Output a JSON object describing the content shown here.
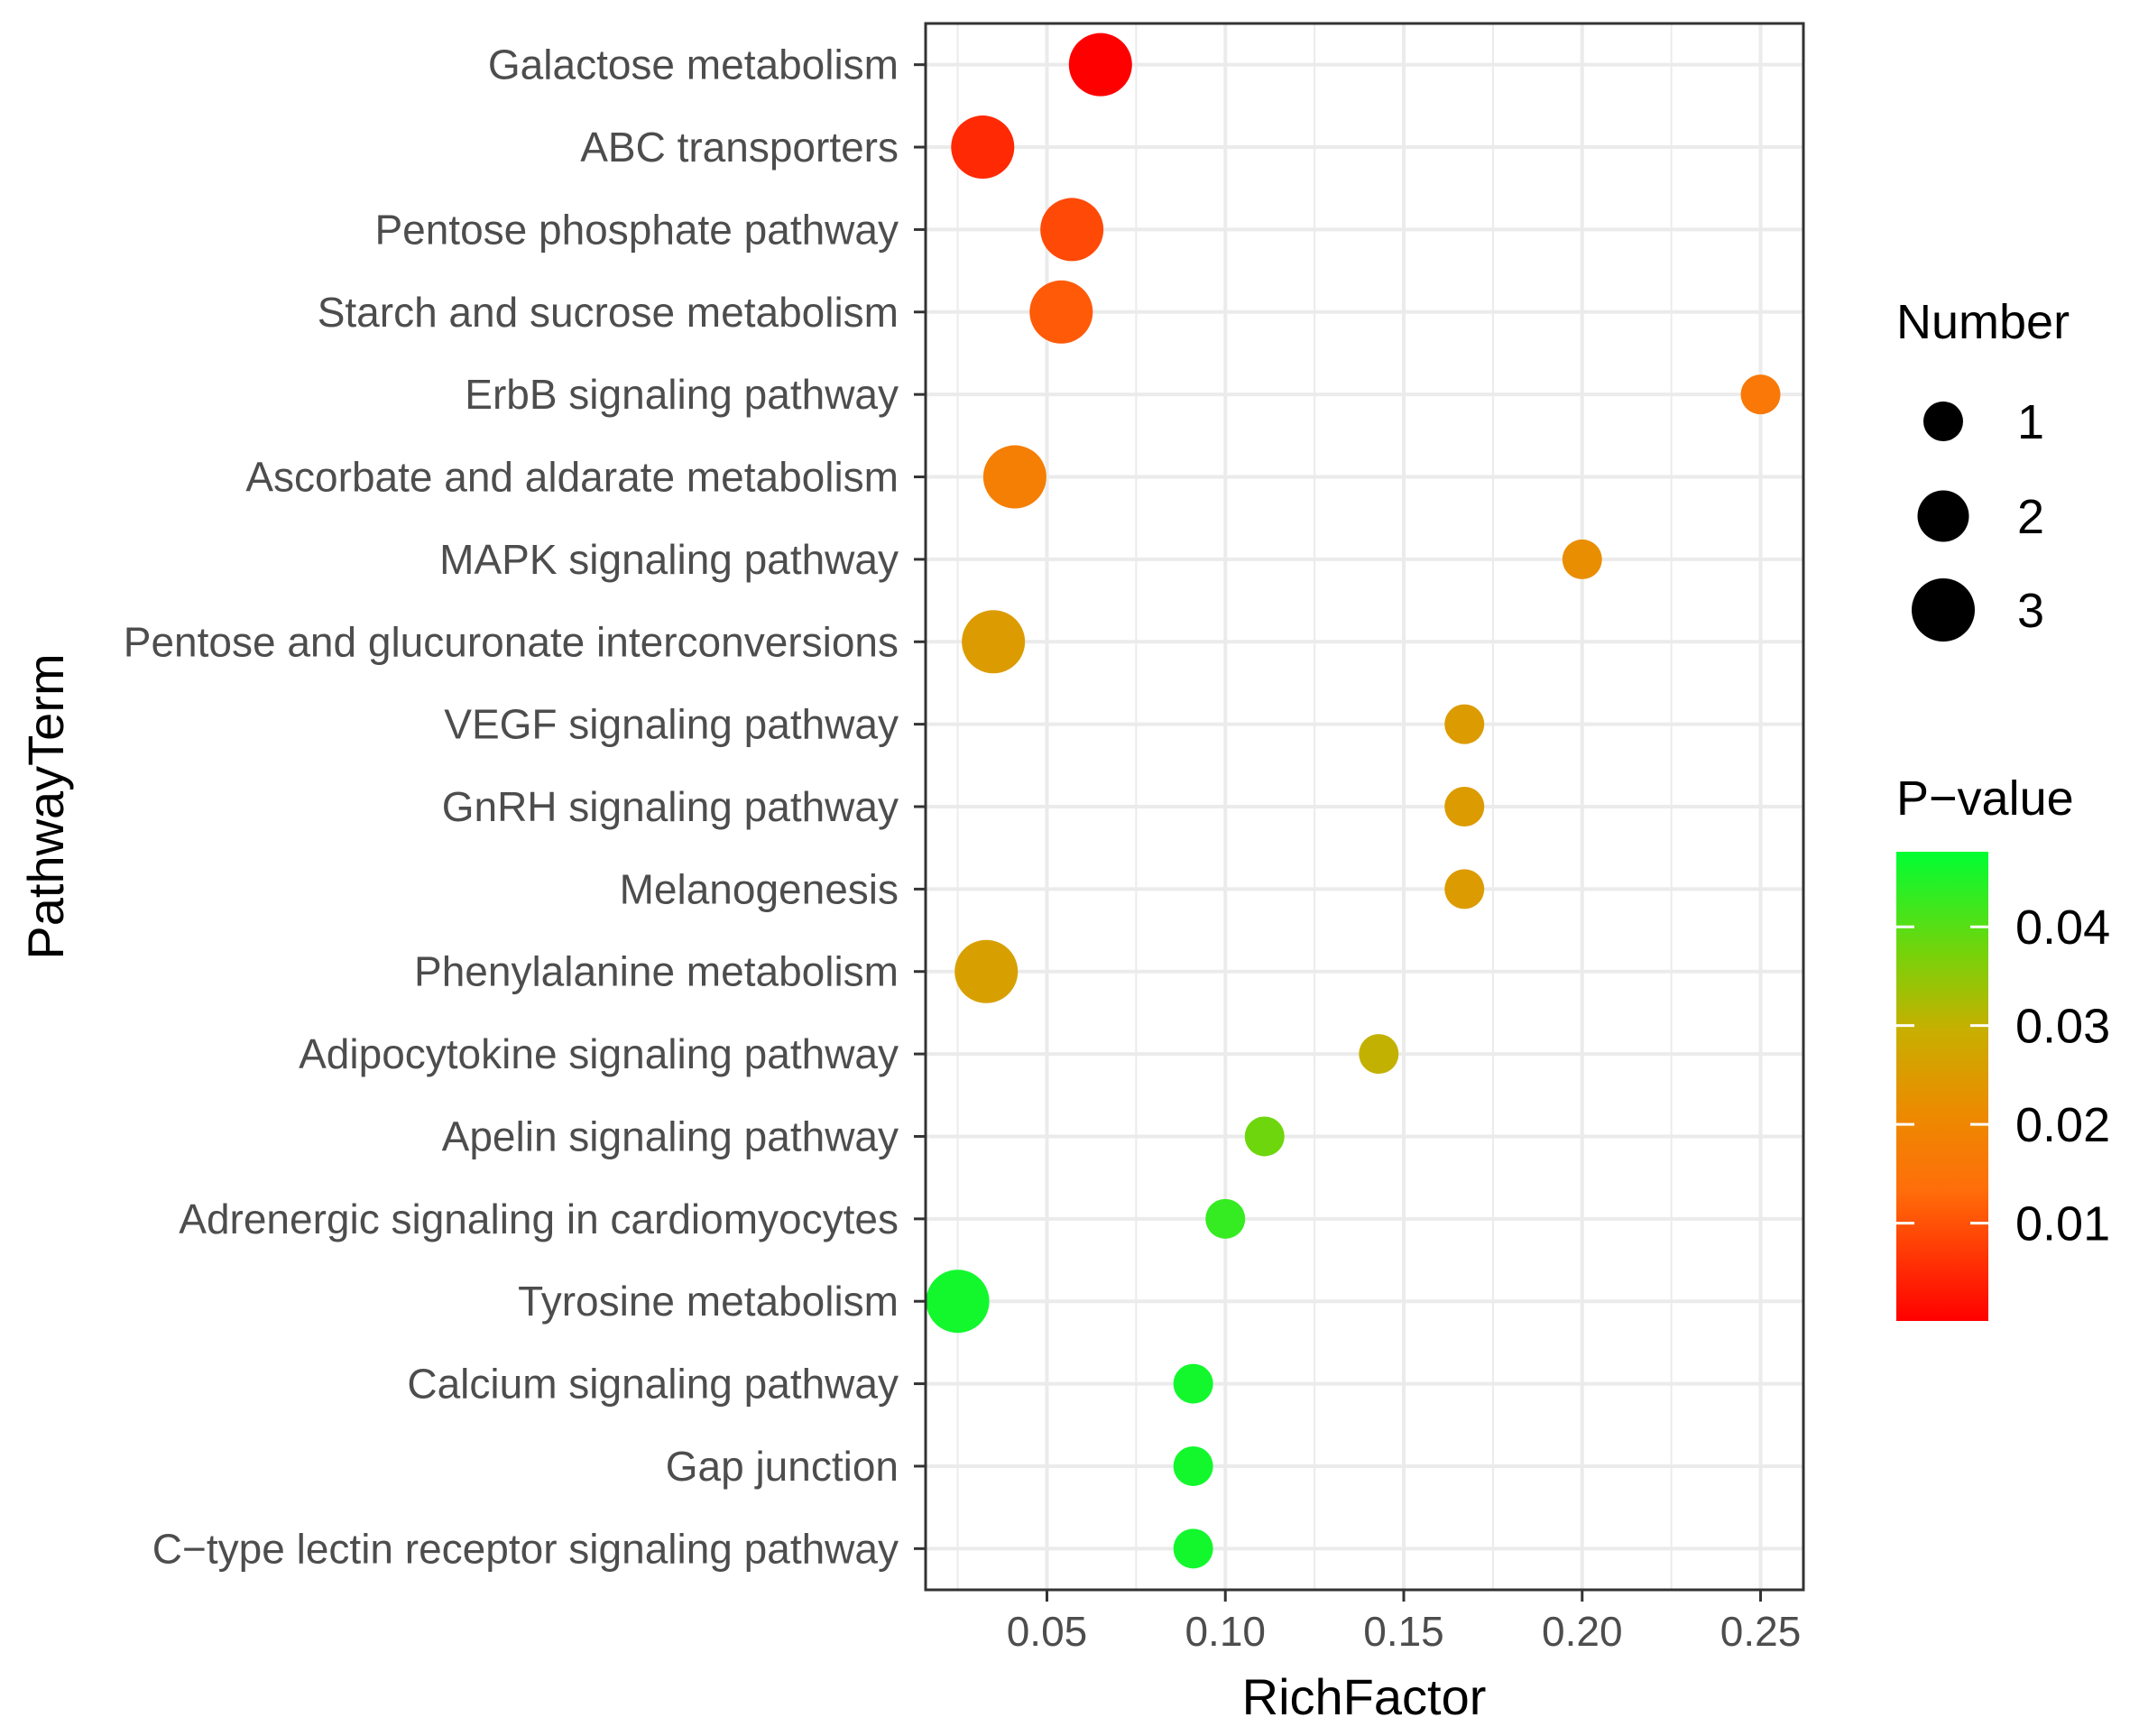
{
  "chart_data": {
    "type": "scatter",
    "xlabel": "RichFactor",
    "ylabel": "PathwayTerm",
    "xlim": [
      0.016,
      0.262
    ],
    "xticks": [
      {
        "value": 0.05,
        "label": "0.05"
      },
      {
        "value": 0.1,
        "label": "0.10"
      },
      {
        "value": 0.15,
        "label": "0.15"
      },
      {
        "value": 0.2,
        "label": "0.20"
      },
      {
        "value": 0.25,
        "label": "0.25"
      }
    ],
    "grid": true,
    "legend_position": "right",
    "points": [
      {
        "term": "Galactose metabolism",
        "rich_factor": 0.065,
        "number": 3,
        "p_value": 0.0001
      },
      {
        "term": "ABC transporters",
        "rich_factor": 0.032,
        "number": 3,
        "p_value": 0.005
      },
      {
        "term": "Pentose phosphate pathway",
        "rich_factor": 0.057,
        "number": 3,
        "p_value": 0.009
      },
      {
        "term": "Starch and sucrose metabolism",
        "rich_factor": 0.054,
        "number": 3,
        "p_value": 0.011
      },
      {
        "term": "ErbB signaling pathway",
        "rich_factor": 0.25,
        "number": 1,
        "p_value": 0.016
      },
      {
        "term": "Ascorbate and aldarate metabolism",
        "rich_factor": 0.041,
        "number": 3,
        "p_value": 0.018
      },
      {
        "term": "MAPK signaling pathway",
        "rich_factor": 0.2,
        "number": 1,
        "p_value": 0.022
      },
      {
        "term": "Pentose and glucuronate interconversions",
        "rich_factor": 0.035,
        "number": 3,
        "p_value": 0.025
      },
      {
        "term": "VEGF signaling pathway",
        "rich_factor": 0.167,
        "number": 1,
        "p_value": 0.025
      },
      {
        "term": "GnRH signaling pathway",
        "rich_factor": 0.167,
        "number": 1,
        "p_value": 0.025
      },
      {
        "term": "Melanogenesis",
        "rich_factor": 0.167,
        "number": 1,
        "p_value": 0.025
      },
      {
        "term": "Phenylalanine metabolism",
        "rich_factor": 0.033,
        "number": 3,
        "p_value": 0.026
      },
      {
        "term": "Adipocytokine signaling pathway",
        "rich_factor": 0.143,
        "number": 1,
        "p_value": 0.03
      },
      {
        "term": "Apelin signaling pathway",
        "rich_factor": 0.111,
        "number": 1,
        "p_value": 0.038
      },
      {
        "term": "Adrenergic signaling in cardiomyocytes",
        "rich_factor": 0.1,
        "number": 1,
        "p_value": 0.043
      },
      {
        "term": "Tyrosine metabolism",
        "rich_factor": 0.025,
        "number": 3,
        "p_value": 0.046
      },
      {
        "term": "Calcium signaling pathway",
        "rich_factor": 0.091,
        "number": 1,
        "p_value": 0.046
      },
      {
        "term": "Gap junction",
        "rich_factor": 0.091,
        "number": 1,
        "p_value": 0.046
      },
      {
        "term": "C−type lectin receptor signaling pathway",
        "rich_factor": 0.091,
        "number": 1,
        "p_value": 0.046
      }
    ],
    "size_legend": {
      "title": "Number",
      "items": [
        {
          "value": 1,
          "label": "1"
        },
        {
          "value": 2,
          "label": "2"
        },
        {
          "value": 3,
          "label": "3"
        }
      ]
    },
    "color_legend": {
      "title": "P−value",
      "range": [
        0.0001,
        0.0476
      ],
      "ticks": [
        {
          "value": 0.04,
          "label": "0.04"
        },
        {
          "value": 0.03,
          "label": "0.03"
        },
        {
          "value": 0.02,
          "label": "0.02"
        },
        {
          "value": 0.01,
          "label": "0.01"
        }
      ],
      "colors": {
        "low": "#ff0000",
        "mid": "#ff8c00",
        "mid2": "#c8b400",
        "high": "#00ff33"
      }
    }
  }
}
